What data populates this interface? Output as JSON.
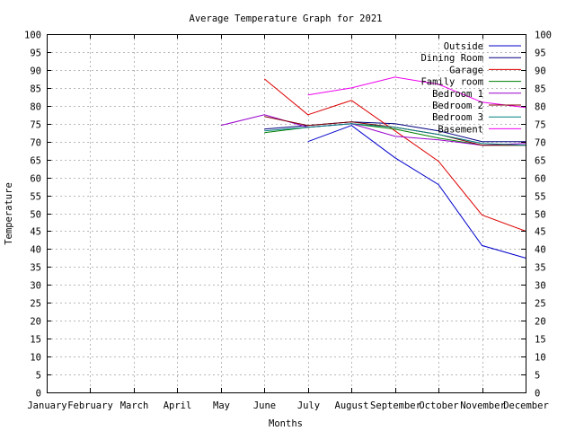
{
  "chart_data": {
    "type": "line",
    "title": "Average Temperature Graph for 2021",
    "xlabel": "Months",
    "ylabel": "Temperature",
    "categories": [
      "January",
      "February",
      "March",
      "April",
      "May",
      "June",
      "July",
      "August",
      "September",
      "October",
      "November",
      "December"
    ],
    "ylim": [
      0,
      100
    ],
    "ytick_step": 5,
    "y_axis_labels_both_sides": true,
    "grid": true,
    "legend_position": "top-right",
    "series": [
      {
        "name": "Outside",
        "color": "#0000cc",
        "values": [
          null,
          null,
          null,
          null,
          null,
          null,
          70,
          74.5,
          65.5,
          58,
          41,
          37.5
        ]
      },
      {
        "name": "Dining Room",
        "color": "#000080",
        "values": [
          null,
          null,
          null,
          null,
          null,
          73.5,
          74.5,
          75.5,
          75,
          73,
          70,
          70
        ]
      },
      {
        "name": "Garage",
        "color": "#dd0000",
        "values": [
          null,
          null,
          null,
          null,
          null,
          87.5,
          77.5,
          81.5,
          73,
          64.5,
          49.5,
          45
        ]
      },
      {
        "name": "Family room",
        "color": "#008000",
        "values": [
          null,
          null,
          null,
          null,
          null,
          72.5,
          74,
          75,
          73.5,
          71,
          69,
          69
        ]
      },
      {
        "name": "Bedroom 1",
        "color": "#9900cc",
        "values": [
          null,
          null,
          null,
          null,
          74.5,
          77.5,
          74,
          75,
          71.5,
          70.5,
          69,
          69.5
        ]
      },
      {
        "name": "Bedroom 2",
        "color": "#800000",
        "values": [
          null,
          null,
          null,
          null,
          null,
          77,
          74.5,
          75.5,
          74,
          72,
          69,
          69
        ]
      },
      {
        "name": "Bedroom 3",
        "color": "#008080",
        "values": [
          null,
          null,
          null,
          null,
          null,
          73,
          74,
          75,
          74,
          72,
          69.5,
          69
        ]
      },
      {
        "name": "Basement",
        "color": "#ee00ee",
        "values": [
          null,
          null,
          null,
          null,
          null,
          null,
          83,
          85,
          88,
          86,
          81,
          79.5
        ]
      }
    ]
  }
}
